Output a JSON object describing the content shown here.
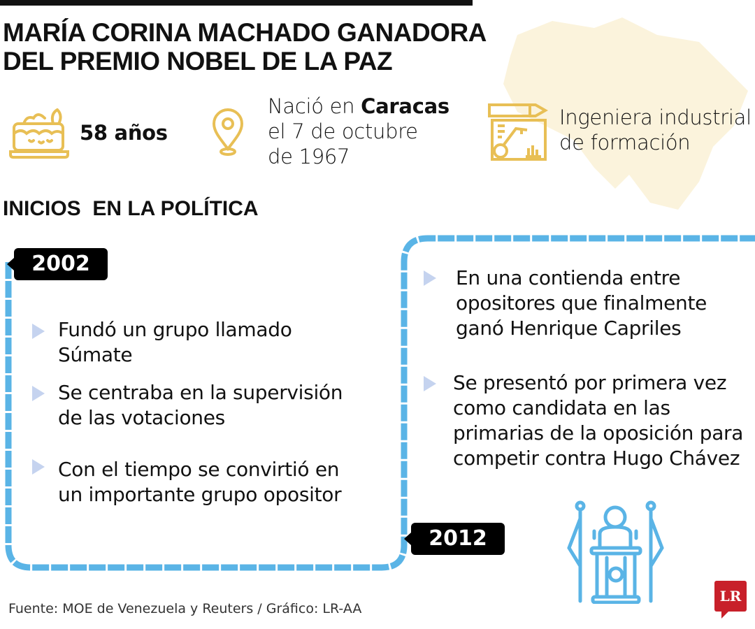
{
  "title": {
    "line1": "MARÍA CORINA MACHADO GANADORA",
    "line2": "DEL PREMIO NOBEL DE LA PAZ"
  },
  "facts": {
    "age": {
      "icon": "cake-icon",
      "text": "58 años"
    },
    "birth": {
      "icon": "location-pin-icon",
      "prefix": "Nació en ",
      "city": "Caracas",
      "line2": "el 7 de octubre",
      "line3": "de 1967"
    },
    "profession": {
      "icon": "engineering-blueprint-icon",
      "line1": "Ingeniera industrial",
      "line2": "de formación"
    }
  },
  "section_title": "INICIOS  EN LA POLÍTICA",
  "timeline": [
    {
      "year": "2002",
      "items": [
        {
          "line1": "Fundó un grupo llamado",
          "line2": "Súmate"
        },
        {
          "line1": "Se centraba en la supervisión",
          "line2": "de las votaciones"
        },
        {
          "line1": "Con el tiempo se convirtió en",
          "line2": "un importante grupo opositor"
        }
      ]
    },
    {
      "year": "2012",
      "items": [
        {
          "line1": "En una contienda entre",
          "line2": "opositores que finalmente",
          "line3": "ganó Henrique Capriles"
        },
        {
          "line1": "Se presentó por primera vez",
          "line2": "como candidata en las",
          "line3": "primarias de la oposición para",
          "line4": "competir contra Hugo Chávez"
        }
      ]
    }
  ],
  "source": "Fuente: MOE de Venezuela y Reuters / Gráfico: LR-AA",
  "logo": "LR",
  "colors": {
    "gold": "#e8bf55",
    "blue": "#5ab4e6",
    "bullet": "#c5d3ef",
    "logo_red": "#c8202a",
    "map": "#fbf3dc"
  }
}
